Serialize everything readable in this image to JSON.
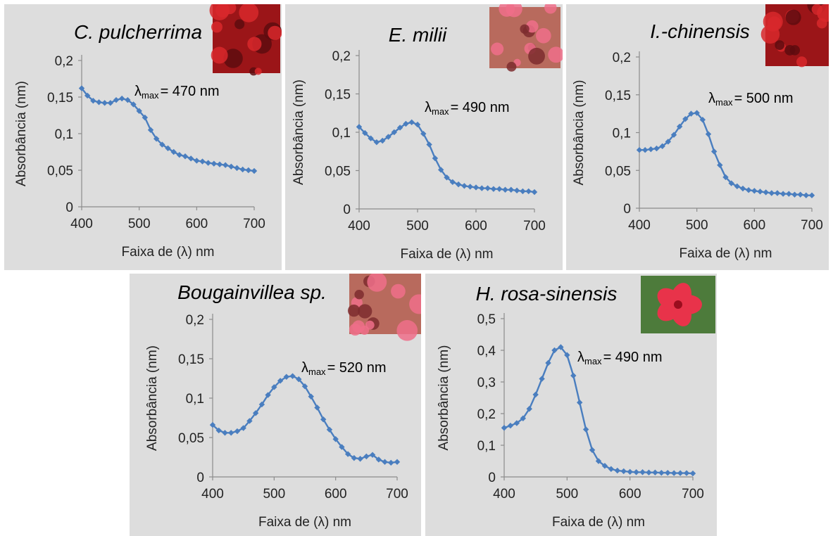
{
  "colors": {
    "panel_bg": "#dddddd",
    "series": "#4a7ebf",
    "axis": "#8c8c8c"
  },
  "chart_data": [
    {
      "type": "line",
      "title": "C. pulcherrima",
      "xlabel": "Faixa de (λ) nm",
      "ylabel": "Absorbância (nm)",
      "annotation": {
        "symbol": "λ",
        "sub": "max",
        "text": "= 470 nm"
      },
      "xlim": [
        400,
        700
      ],
      "ylim": [
        0,
        0.2
      ],
      "xticks": [
        400,
        500,
        600,
        700
      ],
      "xtick_labels": [
        "400",
        "500",
        "600",
        "700"
      ],
      "yticks": [
        0,
        0.05,
        0.1,
        0.15,
        0.2
      ],
      "ytick_labels": [
        "0",
        "0,05",
        "0,1",
        "0,15",
        "0,2"
      ],
      "thumbnail": "red-flower-photo",
      "x": [
        400,
        410,
        420,
        430,
        440,
        450,
        460,
        470,
        480,
        490,
        500,
        510,
        520,
        530,
        540,
        550,
        560,
        570,
        580,
        590,
        600,
        610,
        620,
        630,
        640,
        650,
        660,
        670,
        680,
        690,
        700
      ],
      "y": [
        0.162,
        0.152,
        0.145,
        0.143,
        0.142,
        0.142,
        0.146,
        0.148,
        0.146,
        0.14,
        0.131,
        0.122,
        0.105,
        0.093,
        0.085,
        0.08,
        0.075,
        0.071,
        0.069,
        0.066,
        0.063,
        0.062,
        0.06,
        0.059,
        0.058,
        0.057,
        0.055,
        0.053,
        0.051,
        0.05,
        0.049
      ]
    },
    {
      "type": "line",
      "title": "E. milii",
      "xlabel": "Faixa de (λ) nm",
      "ylabel": "Absorbância (nm)",
      "annotation": {
        "symbol": "λ",
        "sub": "max",
        "text": "=  490 nm"
      },
      "xlim": [
        400,
        700
      ],
      "ylim": [
        0,
        0.2
      ],
      "xticks": [
        400,
        500,
        600,
        700
      ],
      "xtick_labels": [
        "400",
        "500",
        "600",
        "700"
      ],
      "yticks": [
        0,
        0.05,
        0.1,
        0.15,
        0.2
      ],
      "ytick_labels": [
        "0",
        "0,05",
        "0,1",
        "0,15",
        "0,2"
      ],
      "thumbnail": "pink-flower-photo",
      "x": [
        400,
        410,
        420,
        430,
        440,
        450,
        460,
        470,
        480,
        490,
        500,
        510,
        520,
        530,
        540,
        550,
        560,
        570,
        580,
        590,
        600,
        610,
        620,
        630,
        640,
        650,
        660,
        670,
        680,
        690,
        700
      ],
      "y": [
        0.107,
        0.099,
        0.092,
        0.087,
        0.089,
        0.094,
        0.1,
        0.106,
        0.111,
        0.113,
        0.11,
        0.098,
        0.084,
        0.066,
        0.051,
        0.041,
        0.035,
        0.032,
        0.03,
        0.029,
        0.028,
        0.027,
        0.027,
        0.026,
        0.026,
        0.025,
        0.025,
        0.024,
        0.023,
        0.023,
        0.022
      ]
    },
    {
      "type": "line",
      "title": "I.-chinensis",
      "xlabel": "Faixa de (λ) nm",
      "ylabel": "Absorbância (nm)",
      "annotation": {
        "symbol": "λ",
        "sub": "max",
        "text": "= 500 nm"
      },
      "xlim": [
        400,
        700
      ],
      "ylim": [
        0,
        0.2
      ],
      "xticks": [
        400,
        500,
        600,
        700
      ],
      "xtick_labels": [
        "400",
        "500",
        "600",
        "700"
      ],
      "yticks": [
        0,
        0.05,
        0.1,
        0.15,
        0.2
      ],
      "ytick_labels": [
        "0",
        "0,05",
        "0,1",
        "0,15",
        "0,2"
      ],
      "thumbnail": "red-flower-photo",
      "x": [
        400,
        410,
        420,
        430,
        440,
        450,
        460,
        470,
        480,
        490,
        500,
        510,
        520,
        530,
        540,
        550,
        560,
        570,
        580,
        590,
        600,
        610,
        620,
        630,
        640,
        650,
        660,
        670,
        680,
        690,
        700
      ],
      "y": [
        0.077,
        0.077,
        0.078,
        0.079,
        0.082,
        0.088,
        0.097,
        0.108,
        0.118,
        0.125,
        0.126,
        0.117,
        0.098,
        0.075,
        0.057,
        0.041,
        0.033,
        0.029,
        0.026,
        0.024,
        0.023,
        0.022,
        0.021,
        0.02,
        0.02,
        0.019,
        0.019,
        0.018,
        0.018,
        0.017,
        0.017
      ]
    },
    {
      "type": "line",
      "title": "Bougainvillea sp.",
      "xlabel": "Faixa de (λ) nm",
      "ylabel": "Absorbância (nm)",
      "annotation": {
        "symbol": "λ",
        "sub": "max",
        "text": "= 520 nm"
      },
      "xlim": [
        400,
        700
      ],
      "ylim": [
        0,
        0.2
      ],
      "xticks": [
        400,
        500,
        600,
        700
      ],
      "xtick_labels": [
        "400",
        "500",
        "600",
        "700"
      ],
      "yticks": [
        0,
        0.05,
        0.1,
        0.15,
        0.2
      ],
      "ytick_labels": [
        "0",
        "0,05",
        "0,1",
        "0,15",
        "0,2"
      ],
      "thumbnail": "pink-flower-photo",
      "x": [
        400,
        410,
        420,
        430,
        440,
        450,
        460,
        470,
        480,
        490,
        500,
        510,
        520,
        530,
        540,
        550,
        560,
        570,
        580,
        590,
        600,
        610,
        620,
        630,
        640,
        650,
        660,
        670,
        680,
        690,
        700
      ],
      "y": [
        0.066,
        0.059,
        0.056,
        0.056,
        0.058,
        0.062,
        0.071,
        0.081,
        0.092,
        0.104,
        0.114,
        0.122,
        0.127,
        0.128,
        0.124,
        0.115,
        0.102,
        0.088,
        0.073,
        0.06,
        0.048,
        0.038,
        0.029,
        0.024,
        0.023,
        0.026,
        0.028,
        0.022,
        0.019,
        0.018,
        0.019
      ]
    },
    {
      "type": "line",
      "title": "H. rosa-sinensis",
      "xlabel": "Faixa de (λ) nm",
      "ylabel": "Absorbância (nm)",
      "annotation": {
        "symbol": "λ",
        "sub": "max",
        "text": "=  490 nm"
      },
      "xlim": [
        400,
        700
      ],
      "ylim": [
        0,
        0.5
      ],
      "xticks": [
        400,
        500,
        600,
        700
      ],
      "xtick_labels": [
        "400",
        "500",
        "600",
        "700"
      ],
      "yticks": [
        0,
        0.1,
        0.2,
        0.3,
        0.4,
        0.5
      ],
      "ytick_labels": [
        "0",
        "0,1",
        "0,2",
        "0,3",
        "0,4",
        "0,5"
      ],
      "thumbnail": "hibiscus-flower-photo",
      "x": [
        400,
        410,
        420,
        430,
        440,
        450,
        460,
        470,
        480,
        490,
        500,
        510,
        520,
        530,
        540,
        550,
        560,
        570,
        580,
        590,
        600,
        610,
        620,
        630,
        640,
        650,
        660,
        670,
        680,
        690,
        700
      ],
      "y": [
        0.155,
        0.162,
        0.17,
        0.185,
        0.215,
        0.26,
        0.31,
        0.36,
        0.4,
        0.41,
        0.385,
        0.32,
        0.235,
        0.15,
        0.085,
        0.05,
        0.035,
        0.025,
        0.02,
        0.018,
        0.016,
        0.015,
        0.015,
        0.014,
        0.014,
        0.013,
        0.013,
        0.012,
        0.012,
        0.012,
        0.011
      ]
    }
  ]
}
